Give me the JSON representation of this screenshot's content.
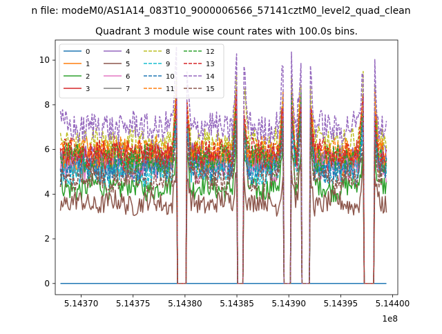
{
  "figure": {
    "suptitle": "n file: modeM0/AS1A14_083T10_9000006566_57141cztM0_level2_quad_clean",
    "colors": [
      "#1f77b4",
      "#ff7f0e",
      "#2ca02c",
      "#d62728",
      "#9467bd",
      "#8c564b",
      "#e377c2",
      "#7f7f7f",
      "#bcbd22",
      "#17becf",
      "#1f77b4",
      "#ff7f0e",
      "#2ca02c",
      "#d62728",
      "#9467bd",
      "#8c564b"
    ]
  },
  "chart_data": {
    "type": "line",
    "title": "Quadrant 3 module wise count rates with 100.0s bins.",
    "xlabel": "",
    "ylabel": "",
    "x_offset_label": "1e8",
    "xlim": [
      5.143675,
      5.144005
    ],
    "ylim": [
      -0.5,
      10.9
    ],
    "x_ticks": [
      5.1437,
      5.14375,
      5.1438,
      5.14385,
      5.1439,
      5.14395,
      5.144
    ],
    "x_tick_labels": [
      "5.14370",
      "5.14375",
      "5.14380",
      "5.14385",
      "5.14390",
      "5.14395",
      "5.14400"
    ],
    "y_ticks": [
      0,
      2,
      4,
      6,
      8,
      10
    ],
    "y_tick_labels": [
      "0",
      "2",
      "4",
      "6",
      "8",
      "10"
    ],
    "grid": false,
    "legend": {
      "location": "upper left",
      "ncol": 4
    },
    "x_range": [
      5.14368,
      5.143994
    ],
    "gaps": [
      [
        5.143792,
        5.143801
      ],
      [
        5.14385,
        5.143856
      ],
      [
        5.143895,
        5.143902
      ],
      [
        5.143912,
        5.14392
      ],
      [
        5.143972,
        5.143982
      ]
    ],
    "series": [
      {
        "name": "0",
        "style": "solid",
        "level": 0.0
      },
      {
        "name": "1",
        "style": "solid",
        "level": 5.5
      },
      {
        "name": "2",
        "style": "solid",
        "level": 4.3
      },
      {
        "name": "3",
        "style": "solid",
        "level": 5.7
      },
      {
        "name": "4",
        "style": "solid",
        "level": 5.6
      },
      {
        "name": "5",
        "style": "solid",
        "level": 3.6
      },
      {
        "name": "6",
        "style": "solid",
        "level": 5.2
      },
      {
        "name": "7",
        "style": "solid",
        "level": 5.3
      },
      {
        "name": "8",
        "style": "dashed",
        "level": 6.3
      },
      {
        "name": "9",
        "style": "dashed",
        "level": 5.0
      },
      {
        "name": "10",
        "style": "dashed",
        "level": 5.1
      },
      {
        "name": "11",
        "style": "dashed",
        "level": 5.9
      },
      {
        "name": "12",
        "style": "dashed",
        "level": 5.6
      },
      {
        "name": "13",
        "style": "dashed",
        "level": 5.8
      },
      {
        "name": "14",
        "style": "dashed",
        "level": 7.0
      },
      {
        "name": "15",
        "style": "dashed",
        "level": 4.7
      }
    ]
  }
}
